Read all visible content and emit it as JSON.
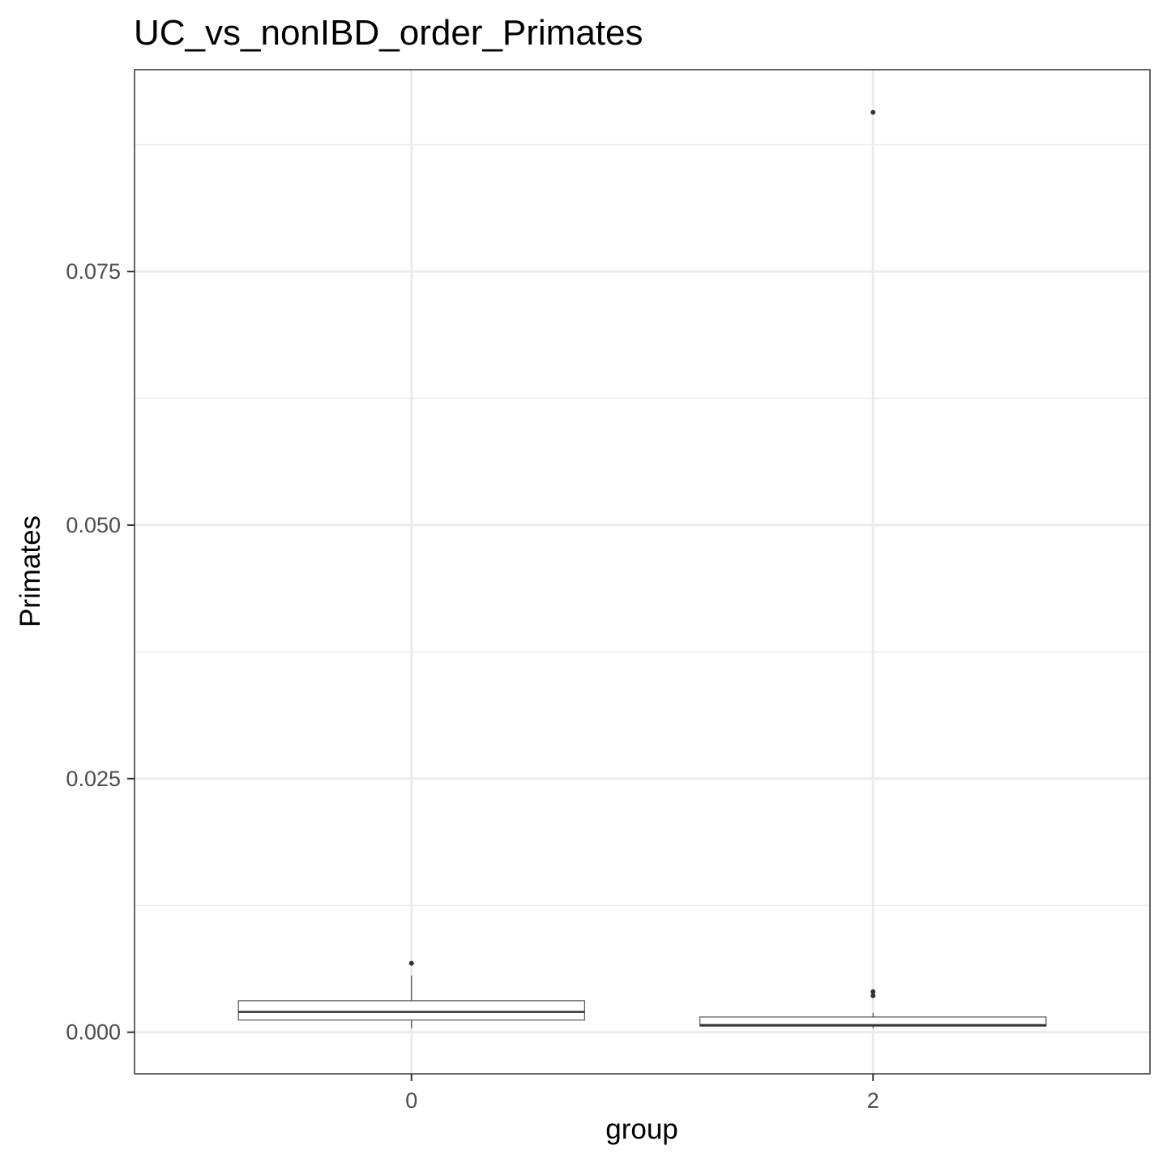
{
  "chart_data": {
    "type": "boxplot",
    "title": "UC_vs_nonIBD_order_Primates",
    "xlabel": "group",
    "ylabel": "Primates",
    "categories": [
      "0",
      "2"
    ],
    "ylim": [
      -0.0041,
      0.0949
    ],
    "yticks": [
      0.0,
      0.025,
      0.05,
      0.075
    ],
    "ytick_labels": [
      "0.000",
      "0.025",
      "0.050",
      "0.075"
    ],
    "grid": true,
    "boxes": [
      {
        "group": "0",
        "whisker_low": 0.0004,
        "q1": 0.0012,
        "median": 0.002,
        "q3": 0.0031,
        "whisker_high": 0.0056,
        "outliers": [
          0.0068
        ]
      },
      {
        "group": "2",
        "whisker_low": 0.0004,
        "q1": 0.0006,
        "median": 0.0007,
        "q3": 0.0015,
        "whisker_high": 0.0019,
        "outliers": [
          0.0036,
          0.004,
          0.0907
        ]
      }
    ]
  }
}
